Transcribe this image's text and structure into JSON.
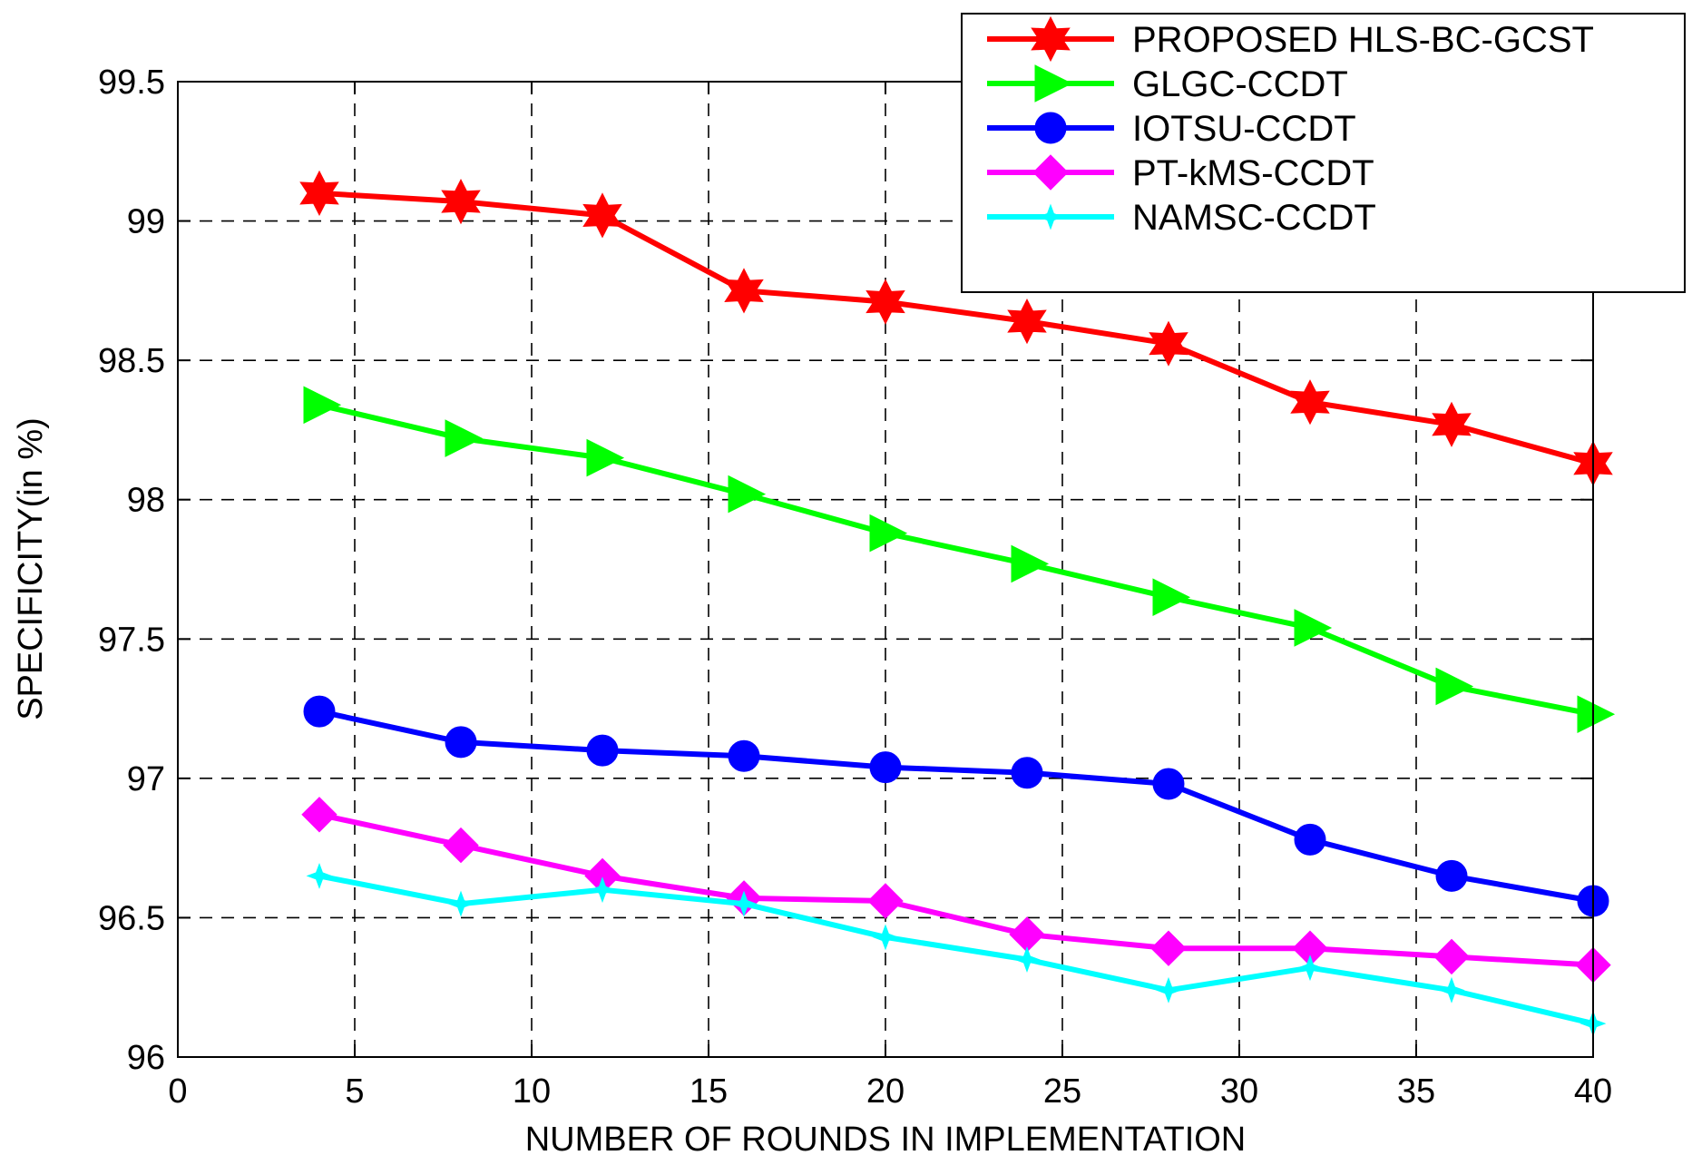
{
  "chart_data": {
    "type": "line",
    "title": "",
    "xlabel": "NUMBER OF ROUNDS IN IMPLEMENTATION",
    "ylabel": "SPECIFICITY(in %)",
    "xlim": [
      0,
      40
    ],
    "ylim": [
      96,
      99.5
    ],
    "xticks": [
      0,
      5,
      10,
      15,
      20,
      25,
      30,
      35,
      40
    ],
    "yticks": [
      96,
      96.5,
      97,
      97.5,
      98,
      98.5,
      99,
      99.5
    ],
    "xtick_labels": [
      "0",
      "5",
      "10",
      "15",
      "20",
      "25",
      "30",
      "35",
      "40"
    ],
    "ytick_labels": [
      "96",
      "96.5",
      "97",
      "97.5",
      "98",
      "98.5",
      "99",
      "99.5"
    ],
    "grid": true,
    "legend_position": "top-right",
    "x": [
      4,
      8,
      12,
      16,
      20,
      24,
      28,
      32,
      36,
      40
    ],
    "series": [
      {
        "name": "PROPOSED HLS-BC-GCST",
        "color": "#ff0000",
        "marker": "hexagram",
        "values": [
          99.1,
          99.07,
          99.02,
          98.75,
          98.71,
          98.64,
          98.56,
          98.35,
          98.27,
          98.13
        ]
      },
      {
        "name": "GLGC-CCDT",
        "color": "#00ff00",
        "marker": "triangle-right",
        "values": [
          98.34,
          98.22,
          98.15,
          98.02,
          97.88,
          97.77,
          97.65,
          97.54,
          97.33,
          97.23
        ]
      },
      {
        "name": "IOTSU-CCDT",
        "color": "#0000ff",
        "marker": "circle",
        "values": [
          97.24,
          97.13,
          97.1,
          97.08,
          97.04,
          97.02,
          96.98,
          96.78,
          96.65,
          96.56
        ]
      },
      {
        "name": "PT-kMS-CCDT",
        "color": "#ff00ff",
        "marker": "diamond",
        "values": [
          96.87,
          96.76,
          96.65,
          96.57,
          96.56,
          96.44,
          96.39,
          96.39,
          96.36,
          96.33
        ]
      },
      {
        "name": "NAMSC-CCDT",
        "color": "#00ffff",
        "marker": "plus-star",
        "values": [
          96.65,
          96.55,
          96.6,
          96.55,
          96.43,
          96.35,
          96.24,
          96.32,
          96.24,
          96.12
        ]
      }
    ]
  }
}
